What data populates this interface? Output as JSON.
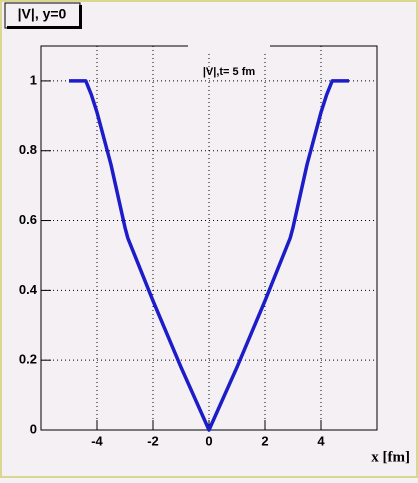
{
  "chart_data": {
    "type": "line",
    "title": "|V|, y=0",
    "annotation": "|V|,t= 5 fm",
    "x_label": "x [fm]",
    "x": [
      -5,
      -4.4,
      -4.2,
      -4,
      -3.5,
      -3,
      -2.9,
      -2,
      -1,
      0,
      1,
      2,
      2.9,
      3,
      3.5,
      4,
      4.2,
      4.4,
      5
    ],
    "series": [
      {
        "name": "|V|",
        "color": "#1c1cc8",
        "values": [
          1,
          1,
          0.96,
          0.91,
          0.76,
          0.58,
          0.55,
          0.37,
          0.18,
          0,
          0.18,
          0.37,
          0.55,
          0.58,
          0.76,
          0.91,
          0.96,
          1,
          1
        ]
      }
    ],
    "xlim": [
      -6,
      6
    ],
    "ylim": [
      0,
      1.1
    ],
    "xticks": [
      -4,
      -2,
      0,
      2,
      4
    ],
    "yticks": [
      0,
      0.2,
      0.4,
      0.6,
      0.8,
      1
    ],
    "grid": true
  }
}
